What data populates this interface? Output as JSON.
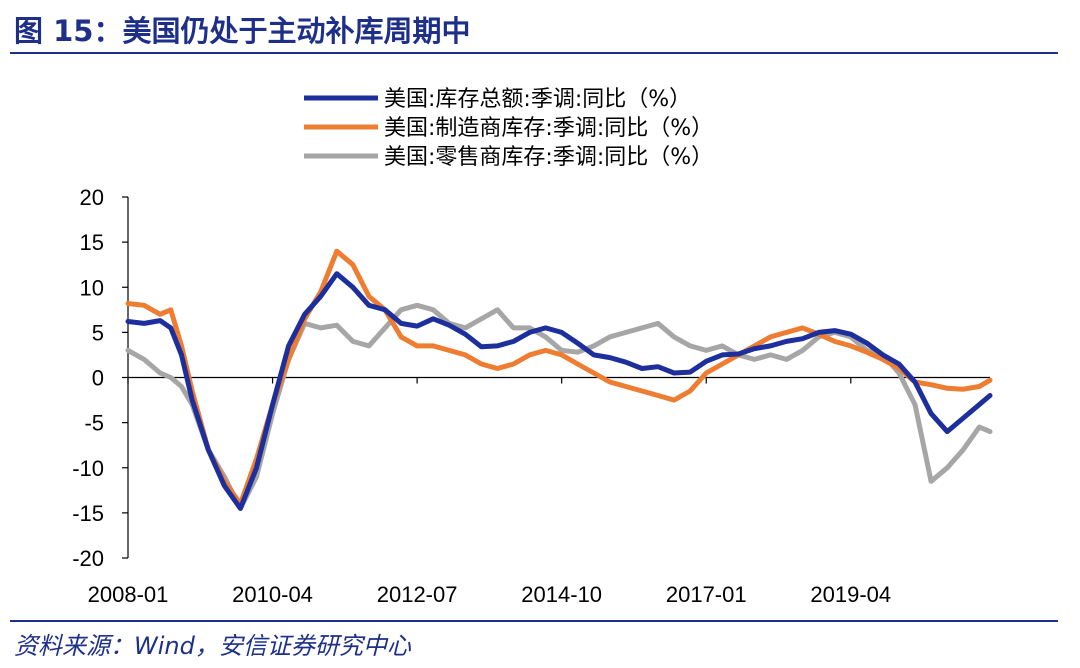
{
  "figure": {
    "title": "图 15：美国仍处于主动补库周期中",
    "source": "资料来源：Wind，安信证券研究中心"
  },
  "chart_data": {
    "type": "line",
    "title": "图 15：美国仍处于主动补库周期中",
    "ylim": [
      -20,
      20
    ],
    "yticks": [
      20,
      15,
      10,
      5,
      0,
      -5,
      -10,
      -15,
      -20
    ],
    "xticks": [
      "2008-01",
      "2010-04",
      "2012-07",
      "2014-10",
      "2017-01",
      "2019-04"
    ],
    "x_range": [
      "2008-01",
      "2021-06"
    ],
    "legend_position": "top-center",
    "grid": false,
    "series": [
      {
        "name": "美国:库存总额:季调:同比（%）",
        "color": "#1d2f9c",
        "points": [
          [
            "2008-01",
            6.2
          ],
          [
            "2008-04",
            6.0
          ],
          [
            "2008-07",
            6.3
          ],
          [
            "2008-09",
            5.5
          ],
          [
            "2008-11",
            2.5
          ],
          [
            "2009-01",
            -2.5
          ],
          [
            "2009-04",
            -8.0
          ],
          [
            "2009-07",
            -12.0
          ],
          [
            "2009-10",
            -14.5
          ],
          [
            "2010-01",
            -10.0
          ],
          [
            "2010-04",
            -3.0
          ],
          [
            "2010-07",
            3.5
          ],
          [
            "2010-10",
            7.0
          ],
          [
            "2011-01",
            9.0
          ],
          [
            "2011-04",
            11.5
          ],
          [
            "2011-07",
            10.0
          ],
          [
            "2011-10",
            8.0
          ],
          [
            "2012-01",
            7.5
          ],
          [
            "2012-04",
            6.0
          ],
          [
            "2012-07",
            5.7
          ],
          [
            "2012-10",
            6.5
          ],
          [
            "2013-01",
            5.8
          ],
          [
            "2013-04",
            4.8
          ],
          [
            "2013-07",
            3.4
          ],
          [
            "2013-10",
            3.5
          ],
          [
            "2014-01",
            4.0
          ],
          [
            "2014-04",
            5.0
          ],
          [
            "2014-07",
            5.5
          ],
          [
            "2014-10",
            5.0
          ],
          [
            "2015-01",
            3.8
          ],
          [
            "2015-04",
            2.5
          ],
          [
            "2015-07",
            2.2
          ],
          [
            "2015-10",
            1.7
          ],
          [
            "2016-01",
            1.0
          ],
          [
            "2016-04",
            1.2
          ],
          [
            "2016-07",
            0.5
          ],
          [
            "2016-10",
            0.6
          ],
          [
            "2017-01",
            1.8
          ],
          [
            "2017-04",
            2.5
          ],
          [
            "2017-07",
            2.6
          ],
          [
            "2017-10",
            3.2
          ],
          [
            "2018-01",
            3.5
          ],
          [
            "2018-04",
            4.0
          ],
          [
            "2018-07",
            4.3
          ],
          [
            "2018-10",
            5.0
          ],
          [
            "2019-01",
            5.2
          ],
          [
            "2019-04",
            4.8
          ],
          [
            "2019-07",
            3.8
          ],
          [
            "2019-10",
            2.5
          ],
          [
            "2020-01",
            1.5
          ],
          [
            "2020-04",
            -0.5
          ],
          [
            "2020-07",
            -4.0
          ],
          [
            "2020-10",
            -6.0
          ],
          [
            "2021-01",
            -4.5
          ],
          [
            "2021-04",
            -3.0
          ],
          [
            "2021-06",
            -2.0
          ]
        ]
      },
      {
        "name": "美国:制造商库存:季调:同比（%）",
        "color": "#ee7d31",
        "points": [
          [
            "2008-01",
            8.2
          ],
          [
            "2008-04",
            8.0
          ],
          [
            "2008-07",
            7.0
          ],
          [
            "2008-09",
            7.5
          ],
          [
            "2008-11",
            3.5
          ],
          [
            "2009-01",
            -1.5
          ],
          [
            "2009-04",
            -8.0
          ],
          [
            "2009-07",
            -11.5
          ],
          [
            "2009-10",
            -14.0
          ],
          [
            "2010-01",
            -9.0
          ],
          [
            "2010-04",
            -3.0
          ],
          [
            "2010-07",
            2.0
          ],
          [
            "2010-10",
            6.5
          ],
          [
            "2011-01",
            9.5
          ],
          [
            "2011-04",
            14.0
          ],
          [
            "2011-07",
            12.5
          ],
          [
            "2011-10",
            9.0
          ],
          [
            "2012-01",
            7.5
          ],
          [
            "2012-04",
            4.5
          ],
          [
            "2012-07",
            3.5
          ],
          [
            "2012-10",
            3.5
          ],
          [
            "2013-01",
            3.0
          ],
          [
            "2013-04",
            2.5
          ],
          [
            "2013-07",
            1.5
          ],
          [
            "2013-10",
            1.0
          ],
          [
            "2014-01",
            1.5
          ],
          [
            "2014-04",
            2.5
          ],
          [
            "2014-07",
            3.0
          ],
          [
            "2014-10",
            2.5
          ],
          [
            "2015-01",
            1.5
          ],
          [
            "2015-04",
            0.5
          ],
          [
            "2015-07",
            -0.5
          ],
          [
            "2015-10",
            -1.0
          ],
          [
            "2016-01",
            -1.5
          ],
          [
            "2016-04",
            -2.0
          ],
          [
            "2016-07",
            -2.5
          ],
          [
            "2016-10",
            -1.5
          ],
          [
            "2017-01",
            0.5
          ],
          [
            "2017-04",
            1.5
          ],
          [
            "2017-07",
            2.5
          ],
          [
            "2017-10",
            3.5
          ],
          [
            "2018-01",
            4.5
          ],
          [
            "2018-04",
            5.0
          ],
          [
            "2018-07",
            5.5
          ],
          [
            "2018-10",
            4.8
          ],
          [
            "2019-01",
            4.0
          ],
          [
            "2019-04",
            3.5
          ],
          [
            "2019-07",
            2.8
          ],
          [
            "2019-10",
            2.0
          ],
          [
            "2020-01",
            1.0
          ],
          [
            "2020-04",
            -0.5
          ],
          [
            "2020-07",
            -0.8
          ],
          [
            "2020-10",
            -1.2
          ],
          [
            "2021-01",
            -1.3
          ],
          [
            "2021-04",
            -1.0
          ],
          [
            "2021-06",
            -0.3
          ]
        ]
      },
      {
        "name": "美国:零售商库存:季调:同比（%）",
        "color": "#a6a6a6",
        "points": [
          [
            "2008-01",
            3.0
          ],
          [
            "2008-04",
            2.0
          ],
          [
            "2008-07",
            0.5
          ],
          [
            "2008-09",
            0.0
          ],
          [
            "2008-11",
            -1.0
          ],
          [
            "2009-01",
            -3.0
          ],
          [
            "2009-04",
            -8.0
          ],
          [
            "2009-07",
            -11.0
          ],
          [
            "2009-10",
            -14.5
          ],
          [
            "2010-01",
            -11.0
          ],
          [
            "2010-04",
            -4.0
          ],
          [
            "2010-07",
            2.0
          ],
          [
            "2010-10",
            6.0
          ],
          [
            "2011-01",
            5.5
          ],
          [
            "2011-04",
            5.8
          ],
          [
            "2011-07",
            4.0
          ],
          [
            "2011-10",
            3.5
          ],
          [
            "2012-01",
            5.5
          ],
          [
            "2012-04",
            7.5
          ],
          [
            "2012-07",
            8.0
          ],
          [
            "2012-10",
            7.5
          ],
          [
            "2013-01",
            6.0
          ],
          [
            "2013-04",
            5.5
          ],
          [
            "2013-07",
            6.5
          ],
          [
            "2013-10",
            7.5
          ],
          [
            "2014-01",
            5.5
          ],
          [
            "2014-04",
            5.5
          ],
          [
            "2014-07",
            4.5
          ],
          [
            "2014-10",
            3.0
          ],
          [
            "2015-01",
            2.8
          ],
          [
            "2015-04",
            3.5
          ],
          [
            "2015-07",
            4.5
          ],
          [
            "2015-10",
            5.0
          ],
          [
            "2016-01",
            5.5
          ],
          [
            "2016-04",
            6.0
          ],
          [
            "2016-07",
            4.5
          ],
          [
            "2016-10",
            3.5
          ],
          [
            "2017-01",
            3.0
          ],
          [
            "2017-04",
            3.5
          ],
          [
            "2017-07",
            2.5
          ],
          [
            "2017-10",
            2.0
          ],
          [
            "2018-01",
            2.5
          ],
          [
            "2018-04",
            2.0
          ],
          [
            "2018-07",
            3.0
          ],
          [
            "2018-10",
            4.5
          ],
          [
            "2019-01",
            5.0
          ],
          [
            "2019-04",
            4.5
          ],
          [
            "2019-07",
            3.0
          ],
          [
            "2019-10",
            2.5
          ],
          [
            "2020-01",
            0.5
          ],
          [
            "2020-04",
            -3.0
          ],
          [
            "2020-07",
            -11.5
          ],
          [
            "2020-10",
            -10.0
          ],
          [
            "2021-01",
            -8.0
          ],
          [
            "2021-04",
            -5.5
          ],
          [
            "2021-06",
            -6.0
          ]
        ]
      }
    ]
  }
}
